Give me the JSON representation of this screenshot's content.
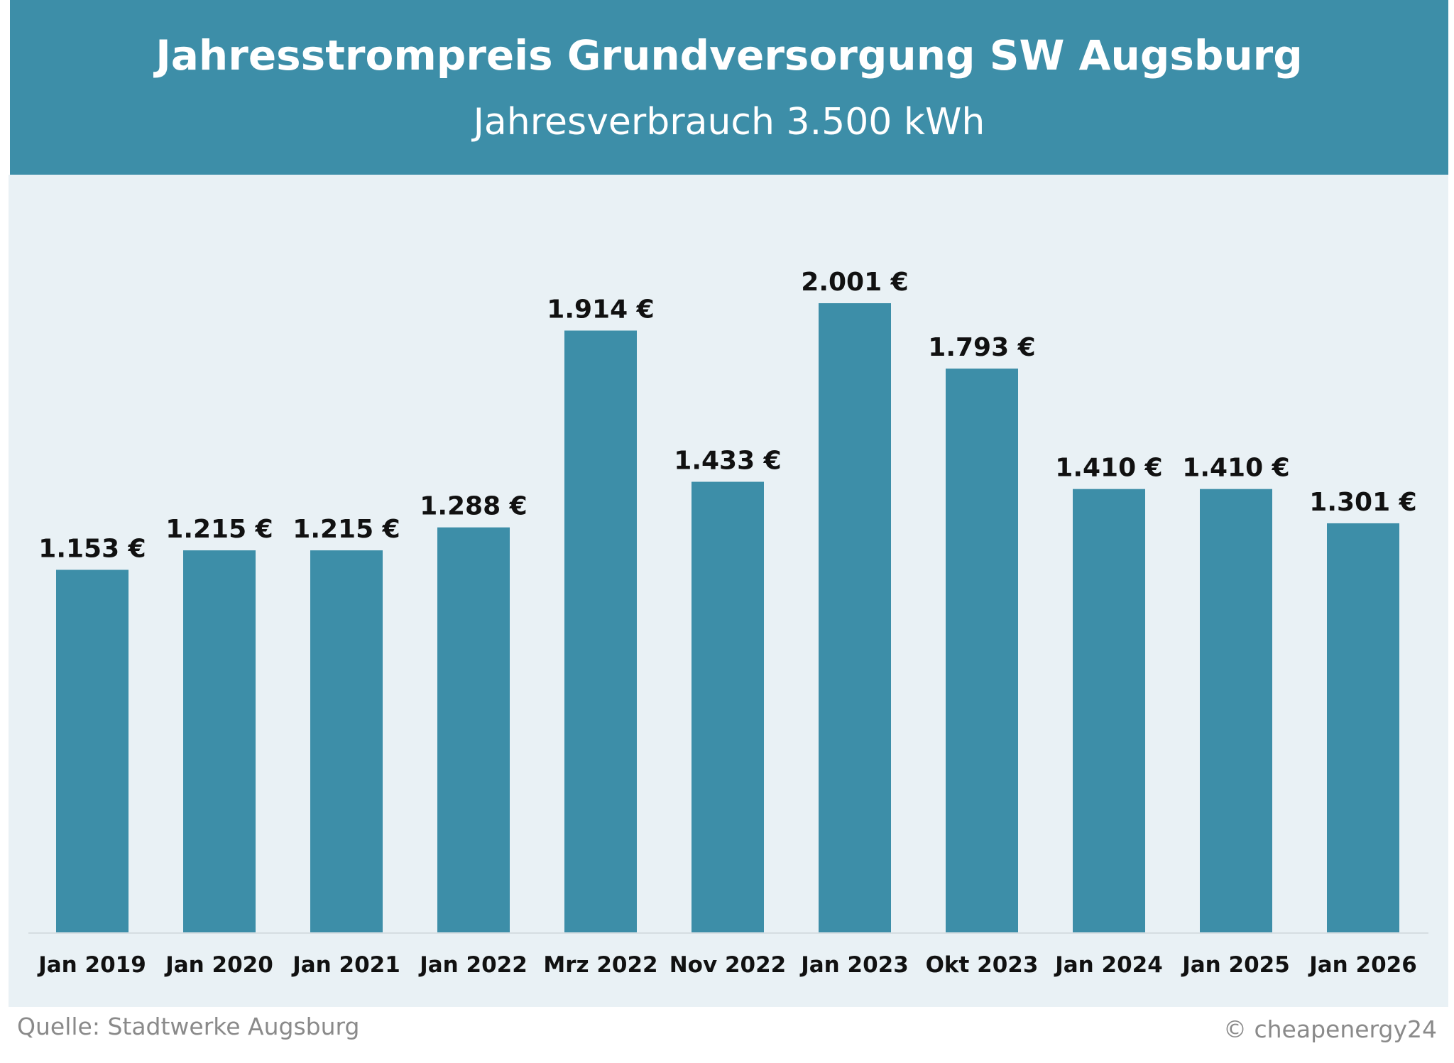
{
  "header": {
    "title": "Jahresstrompreis Grundversorgung SW Augsburg",
    "subtitle": "Jahresverbrauch 3.500 kWh"
  },
  "footer": {
    "source": "Quelle: Stadtwerke Augsburg",
    "copyright": "© cheapenergy24"
  },
  "colors": {
    "bar": "#3d8ea8",
    "header": "#3d8ea8",
    "plot_background": "#e9f1f5",
    "label_text": "#111111"
  },
  "chart_data": {
    "type": "bar",
    "title": "Jahresstrompreis Grundversorgung SW Augsburg",
    "subtitle": "Jahresverbrauch 3.500 kWh",
    "xlabel": "",
    "ylabel": "",
    "categories": [
      "Jan 2019",
      "Jan 2020",
      "Jan 2021",
      "Jan 2022",
      "Mrz 2022",
      "Nov 2022",
      "Jan 2023",
      "Okt 2023",
      "Jan 2024",
      "Jan 2025",
      "Jan 2026"
    ],
    "values": [
      1153,
      1215,
      1215,
      1288,
      1914,
      1433,
      2001,
      1793,
      1410,
      1410,
      1301
    ],
    "value_labels": [
      "1.153 €",
      "1.215 €",
      "1.215 €",
      "1.288 €",
      "1.914 €",
      "1.433 €",
      "2.001 €",
      "1.793 €",
      "1.410 €",
      "1.410 €",
      "1.301 €"
    ],
    "ylim": [
      0,
      2001
    ],
    "grid": false,
    "legend": "none"
  }
}
